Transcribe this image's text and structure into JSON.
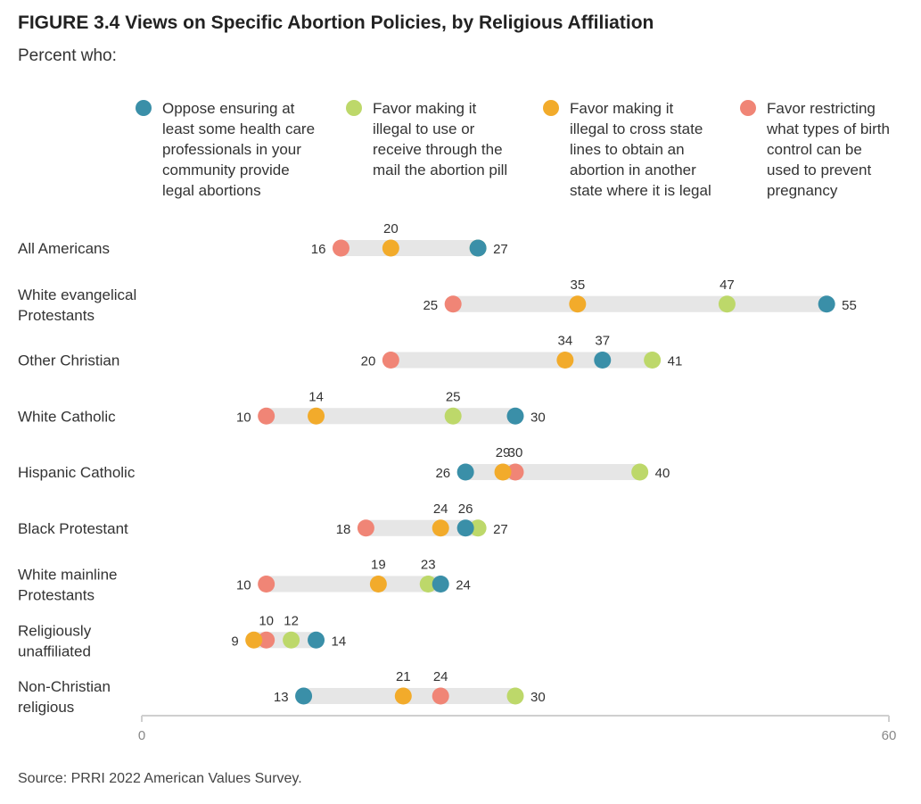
{
  "title": "FIGURE 3.4  Views on Specific Abortion Policies, by Religious Affiliation",
  "subtitle": "Percent who:",
  "source": "Source: PRRI 2022 American Values Survey.",
  "colors": {
    "oppose": "#3a8fa8",
    "pill": "#bdd86a",
    "cross_state": "#f2ab2b",
    "birth_control": "#f08576",
    "track": "#e6e6e6",
    "axis": "#cfcfcf"
  },
  "legend": [
    {
      "key": "oppose",
      "text": "Oppose ensuring at\nleast some health care\nprofessionals in your\ncommunity provide\nlegal abortions"
    },
    {
      "key": "pill",
      "text": "Favor making it\nillegal to use or\nreceive through the\nmail the abortion pill"
    },
    {
      "key": "cross_state",
      "text": "Favor making it\nillegal to cross state\nlines to obtain an\nabortion in another\nstate where it is legal"
    },
    {
      "key": "birth_control",
      "text": "Favor restricting\nwhat types of birth\ncontrol can be\nused to prevent\npregnancy"
    }
  ],
  "chart_data": {
    "type": "dot-range",
    "xlim": [
      0,
      60
    ],
    "x_ticks": [
      0,
      60
    ],
    "series_keys": [
      "oppose",
      "pill",
      "cross_state",
      "birth_control"
    ],
    "categories": [
      {
        "label": "All Americans",
        "values": {
          "oppose": 27,
          "pill": 27,
          "cross_state": 20,
          "birth_control": 16
        }
      },
      {
        "label": "White evangelical\nProtestants",
        "values": {
          "oppose": 55,
          "pill": 47,
          "cross_state": 35,
          "birth_control": 25
        }
      },
      {
        "label": "Other Christian",
        "values": {
          "oppose": 37,
          "pill": 41,
          "cross_state": 34,
          "birth_control": 20
        }
      },
      {
        "label": "White Catholic",
        "values": {
          "oppose": 30,
          "pill": 25,
          "cross_state": 14,
          "birth_control": 10
        }
      },
      {
        "label": "Hispanic Catholic",
        "values": {
          "oppose": 26,
          "pill": 40,
          "cross_state": 29,
          "birth_control": 30
        }
      },
      {
        "label": "Black Protestant",
        "values": {
          "oppose": 26,
          "pill": 27,
          "cross_state": 24,
          "birth_control": 18
        }
      },
      {
        "label": "White mainline\nProtestants",
        "values": {
          "oppose": 24,
          "pill": 23,
          "cross_state": 19,
          "birth_control": 10
        }
      },
      {
        "label": "Religiously\nunaffiliated",
        "values": {
          "oppose": 14,
          "pill": 12,
          "cross_state": 9,
          "birth_control": 10
        }
      },
      {
        "label": "Non-Christian\nreligious",
        "values": {
          "oppose": 13,
          "pill": 30,
          "cross_state": 21,
          "birth_control": 24
        }
      }
    ]
  }
}
